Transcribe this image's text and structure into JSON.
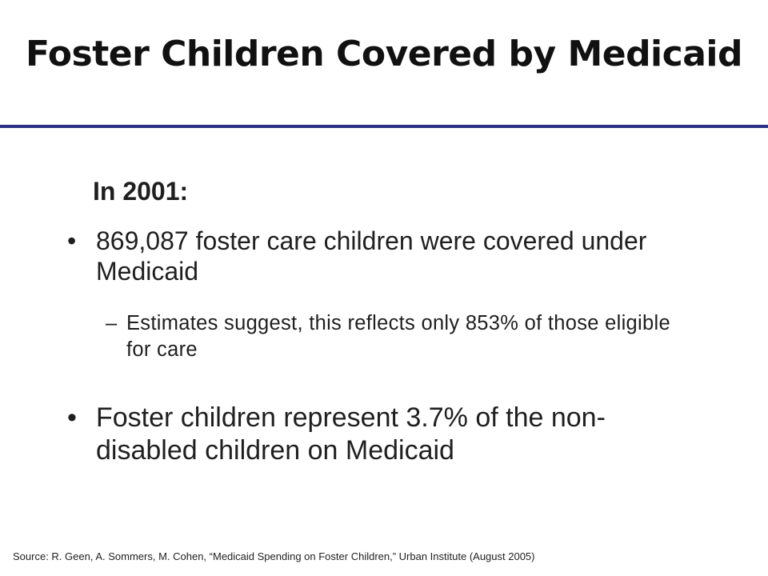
{
  "slide": {
    "title": "Foster Children Covered by Medicaid",
    "heading": "In 2001:",
    "bullets": [
      {
        "marker": "•",
        "text": "869,087 foster care children were covered under Medicaid"
      },
      {
        "marker": "–",
        "text": "Estimates suggest, this reflects only 853% of those eligible for care"
      },
      {
        "marker": "•",
        "text": "Foster children represent 3.7% of the non-disabled children on Medicaid"
      }
    ],
    "source": "Source: R. Geen, A. Sommers, M. Cohen, “Medicaid Spending on Foster Children,” Urban Institute (August 2005)"
  },
  "colors": {
    "rule": "#2b2f86",
    "text": "#1f1f1f"
  }
}
